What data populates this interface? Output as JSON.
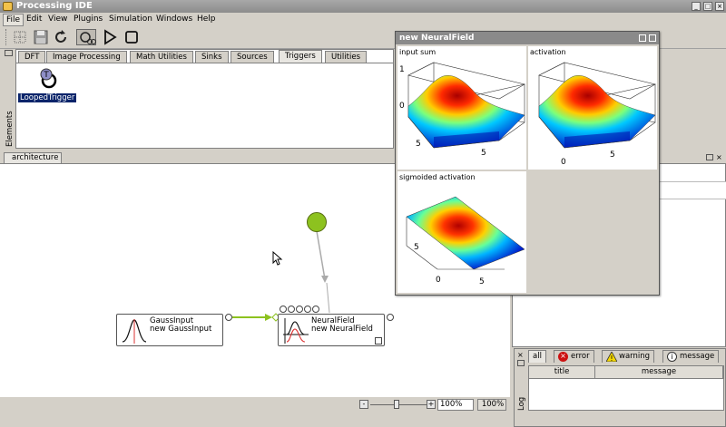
{
  "window": {
    "title": "Processing IDE"
  },
  "menu": {
    "items": [
      "File",
      "Edit",
      "View",
      "Plugins",
      "Simulation",
      "Windows",
      "Help"
    ]
  },
  "palette": {
    "side_label": "Elements",
    "tabs": [
      "DFT",
      "Image Processing",
      "Math Utilities",
      "Sinks",
      "Sources",
      "Triggers",
      "Utilities"
    ],
    "active_tab": "Triggers",
    "elements": [
      {
        "label": "LoopedTrigger",
        "icon": "T"
      }
    ]
  },
  "architecture": {
    "tab_label": "architecture",
    "nodes": [
      {
        "line1": "GaussInput",
        "line2": "new GaussInput"
      },
      {
        "line1": "NeuralField",
        "line2": "new NeuralField"
      }
    ],
    "zoom": {
      "value": "100%",
      "button": "100%",
      "minus": "-",
      "plus": "+"
    }
  },
  "neural_field_window": {
    "title": "new NeuralField",
    "plots": [
      {
        "label": "input sum",
        "tick_z_top": "1",
        "tick_z_bottom": "0",
        "tick_a": "5",
        "tick_b": "5"
      },
      {
        "label": "activation",
        "tick_a": "0",
        "tick_b": "5"
      },
      {
        "label": "sigmoided activation",
        "tick_y": "5",
        "tick_x": "5",
        "tick_origin": "0"
      }
    ]
  },
  "log": {
    "side_label": "Log",
    "tabs": [
      "all",
      "error",
      "warning",
      "message"
    ],
    "columns": [
      "title",
      "message"
    ]
  },
  "colors": {
    "selection": "#0a246a",
    "connection": "#8dc21f",
    "peak_node": "#8dc21f"
  }
}
